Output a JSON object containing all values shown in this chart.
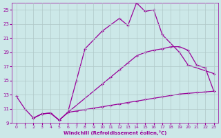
{
  "xlabel": "Windchill (Refroidissement éolien,°C)",
  "bg_color": "#cce8e8",
  "grid_color": "#b0c8c8",
  "line_color": "#990099",
  "xlim": [
    -0.5,
    23.5
  ],
  "ylim": [
    9,
    26
  ],
  "yticks": [
    9,
    11,
    13,
    15,
    17,
    19,
    21,
    23,
    25
  ],
  "xticks": [
    0,
    1,
    2,
    3,
    4,
    5,
    6,
    7,
    8,
    9,
    10,
    11,
    12,
    13,
    14,
    15,
    16,
    17,
    18,
    19,
    20,
    21,
    22,
    23
  ],
  "series": [
    {
      "x": [
        0,
        1,
        2,
        3,
        4,
        5,
        6,
        7,
        8,
        10,
        12,
        13,
        14,
        15,
        16,
        17,
        19,
        20,
        23
      ],
      "y": [
        12.8,
        11.0,
        9.7,
        10.3,
        10.4,
        9.4,
        10.5,
        15.0,
        19.5,
        22.0,
        23.8,
        22.8,
        26.0,
        24.8,
        25.0,
        21.5,
        19.0,
        17.2,
        16.0
      ]
    },
    {
      "x": [
        2,
        3,
        4,
        5,
        6,
        10,
        11,
        12,
        13,
        14,
        15,
        16,
        17,
        18,
        19,
        20,
        21,
        22,
        23
      ],
      "y": [
        9.7,
        10.3,
        10.4,
        9.4,
        10.5,
        14.5,
        15.5,
        16.5,
        17.5,
        18.5,
        19.0,
        19.3,
        19.5,
        19.8,
        19.8,
        19.3,
        17.2,
        16.8,
        13.5
      ]
    },
    {
      "x": [
        2,
        3,
        4,
        5,
        6,
        7,
        8,
        9,
        10,
        11,
        12,
        13,
        14,
        15,
        16,
        17,
        18,
        19,
        20,
        21,
        22,
        23
      ],
      "y": [
        9.7,
        10.3,
        10.4,
        9.4,
        10.5,
        10.7,
        10.9,
        11.1,
        11.3,
        11.5,
        11.7,
        11.9,
        12.1,
        12.3,
        12.5,
        12.7,
        12.9,
        13.1,
        13.2,
        13.3,
        13.4,
        13.5
      ]
    }
  ]
}
